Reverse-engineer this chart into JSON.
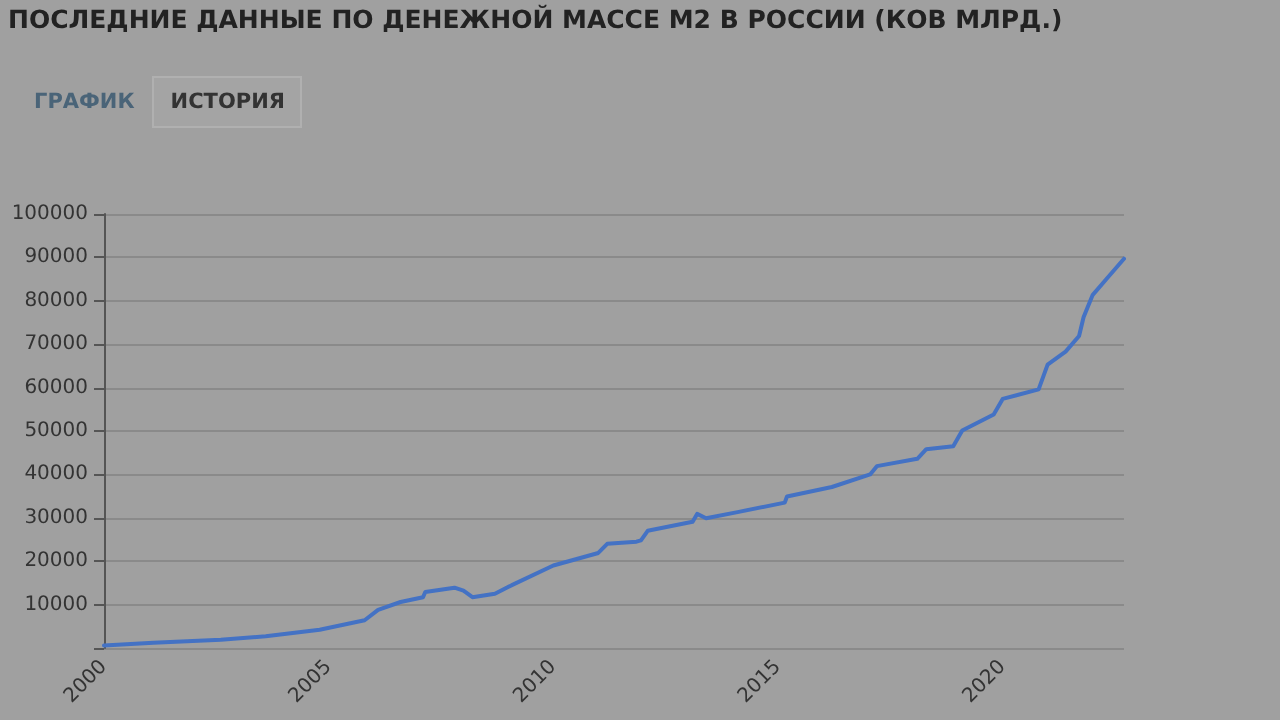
{
  "chart_data": {
    "type": "line",
    "title": "ПОСЛЕДНИЕ ДАННЫЕ ПО ДЕНЕЖНОЙ МАССЕ М2 В РОССИИ (КОВ МЛРД.)",
    "annotations": [
      "ГРАФИК",
      "ИСТОРИЯ"
    ],
    "x": [
      2000.0,
      2001.1,
      2002.6,
      2003.6,
      2004.8,
      2005.8,
      2006.1,
      2006.6,
      2007.1,
      2007.15,
      2007.8,
      2008.0,
      2008.2,
      2008.7,
      2009.1,
      2010.0,
      2011.0,
      2011.2,
      2011.85,
      2011.95,
      2012.1,
      2013.1,
      2013.2,
      2013.4,
      2014.1,
      2015.15,
      2015.2,
      2016.2,
      2017.05,
      2017.2,
      2018.1,
      2018.3,
      2018.9,
      2019.1,
      2019.8,
      2020.0,
      2020.8,
      2021.0,
      2021.4,
      2021.7,
      2021.8,
      2022.0,
      2022.3,
      2022.7
    ],
    "series": [
      {
        "color": "#4472c4",
        "values": [
          600,
          1200,
          1900,
          2700,
          4200,
          6400,
          8800,
          10600,
          11700,
          12900,
          13900,
          13200,
          11700,
          12500,
          14600,
          19000,
          21900,
          24000,
          24500,
          24800,
          27000,
          29100,
          30900,
          29900,
          31300,
          33500,
          34900,
          37100,
          40000,
          41900,
          43600,
          45800,
          46500,
          50100,
          53800,
          57400,
          59600,
          65300,
          68300,
          71900,
          76200,
          81300,
          84900,
          89700
        ]
      }
    ],
    "xlim": [
      2000,
      2022.7
    ],
    "xticks": [
      2000,
      2005,
      2010,
      2015,
      2020
    ],
    "ylim": [
      0,
      100000
    ],
    "yticks": [
      {
        "value": 0,
        "label": null
      },
      10000,
      20000,
      30000,
      40000,
      50000,
      60000,
      70000,
      80000,
      90000,
      100000
    ],
    "grid": "y",
    "marker": "none",
    "line_style": "solid"
  }
}
